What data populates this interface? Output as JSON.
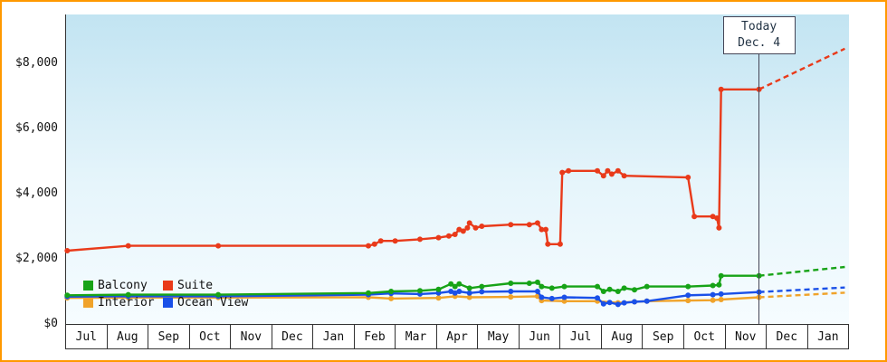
{
  "window": {
    "border_color": "#ff9900",
    "background": "#ffffff"
  },
  "today_marker": {
    "line1": "Today",
    "line2": "Dec. 4",
    "month_index": 16.32
  },
  "legend": {
    "items": [
      {
        "label": "Balcony",
        "color": "#17a317"
      },
      {
        "label": "Suite",
        "color": "#e93a1a"
      },
      {
        "label": "Interior",
        "color": "#f0a32a"
      },
      {
        "label": "Ocean View",
        "color": "#1a50e8"
      }
    ]
  },
  "chart_data": {
    "type": "line",
    "title": "",
    "grid": false,
    "legend_position": "bottom-left",
    "x_unit": "month-index, 0 = center of first Jul cell, fractional = day within month",
    "x_tick_labels": [
      "Jul",
      "Aug",
      "Sep",
      "Oct",
      "Nov",
      "Dec",
      "Jan",
      "Feb",
      "Mar",
      "Apr",
      "May",
      "Jun",
      "Jul",
      "Aug",
      "Sep",
      "Oct",
      "Nov",
      "Dec",
      "Jan"
    ],
    "y_ticks": [
      {
        "label": "$0",
        "value": 0
      },
      {
        "label": "$2,000",
        "value": 2000
      },
      {
        "label": "$4,000",
        "value": 4000
      },
      {
        "label": "$6,000",
        "value": 6000
      },
      {
        "label": "$8,000",
        "value": 8000
      }
    ],
    "ylim": [
      0,
      9500
    ],
    "plot_background": {
      "top": "#c2e4f2",
      "bottom": "#f6fcff"
    },
    "today": {
      "label": [
        "Today",
        "Dec. 4"
      ],
      "x": 16.32
    },
    "series": [
      {
        "name": "Interior",
        "color": "#f0a32a",
        "points": [
          [
            -0.45,
            800
          ],
          [
            1.03,
            810
          ],
          [
            3.21,
            810
          ],
          [
            6.85,
            820
          ],
          [
            7.4,
            780
          ],
          [
            8.55,
            800
          ],
          [
            8.95,
            850
          ],
          [
            9.3,
            820
          ],
          [
            10.3,
            830
          ],
          [
            10.95,
            850
          ],
          [
            11.05,
            720
          ],
          [
            11.6,
            700
          ],
          [
            12.4,
            700
          ],
          [
            12.9,
            650
          ],
          [
            13.3,
            680
          ],
          [
            13.6,
            700
          ],
          [
            14.6,
            720
          ],
          [
            15.2,
            730
          ],
          [
            15.4,
            750
          ],
          [
            16.32,
            820
          ]
        ],
        "projection": [
          [
            16.32,
            820
          ],
          [
            18.4,
            960
          ]
        ]
      },
      {
        "name": "Ocean View",
        "color": "#1a50e8",
        "points": [
          [
            -0.45,
            840
          ],
          [
            1.03,
            850
          ],
          [
            3.21,
            850
          ],
          [
            6.85,
            900
          ],
          [
            7.4,
            940
          ],
          [
            8.1,
            920
          ],
          [
            8.55,
            950
          ],
          [
            8.85,
            1000
          ],
          [
            8.95,
            950
          ],
          [
            9.05,
            1000
          ],
          [
            9.3,
            950
          ],
          [
            9.6,
            990
          ],
          [
            10.3,
            1000
          ],
          [
            10.95,
            1000
          ],
          [
            11.05,
            820
          ],
          [
            11.3,
            780
          ],
          [
            11.6,
            820
          ],
          [
            12.4,
            800
          ],
          [
            12.55,
            620
          ],
          [
            12.7,
            660
          ],
          [
            12.9,
            600
          ],
          [
            13.05,
            650
          ],
          [
            13.3,
            680
          ],
          [
            13.6,
            700
          ],
          [
            14.6,
            880
          ],
          [
            15.2,
            900
          ],
          [
            15.4,
            920
          ],
          [
            16.32,
            980
          ]
        ],
        "projection": [
          [
            16.32,
            980
          ],
          [
            18.4,
            1120
          ]
        ]
      },
      {
        "name": "Balcony",
        "color": "#17a317",
        "points": [
          [
            -0.45,
            880
          ],
          [
            1.03,
            900
          ],
          [
            3.21,
            900
          ],
          [
            6.85,
            950
          ],
          [
            7.4,
            1000
          ],
          [
            8.1,
            1020
          ],
          [
            8.55,
            1060
          ],
          [
            8.85,
            1230
          ],
          [
            8.95,
            1150
          ],
          [
            9.05,
            1230
          ],
          [
            9.3,
            1100
          ],
          [
            9.6,
            1150
          ],
          [
            10.3,
            1250
          ],
          [
            10.75,
            1250
          ],
          [
            10.95,
            1280
          ],
          [
            11.05,
            1150
          ],
          [
            11.3,
            1100
          ],
          [
            11.6,
            1150
          ],
          [
            12.4,
            1150
          ],
          [
            12.55,
            1000
          ],
          [
            12.7,
            1060
          ],
          [
            12.9,
            1000
          ],
          [
            13.05,
            1100
          ],
          [
            13.3,
            1050
          ],
          [
            13.6,
            1150
          ],
          [
            14.6,
            1150
          ],
          [
            15.2,
            1180
          ],
          [
            15.35,
            1200
          ],
          [
            15.4,
            1480
          ],
          [
            16.32,
            1480
          ]
        ],
        "projection": [
          [
            16.32,
            1480
          ],
          [
            18.4,
            1750
          ]
        ]
      },
      {
        "name": "Suite",
        "color": "#e93a1a",
        "points": [
          [
            -0.45,
            2250
          ],
          [
            1.03,
            2400
          ],
          [
            3.21,
            2400
          ],
          [
            6.85,
            2400
          ],
          [
            7.0,
            2450
          ],
          [
            7.15,
            2550
          ],
          [
            7.5,
            2550
          ],
          [
            8.1,
            2600
          ],
          [
            8.55,
            2650
          ],
          [
            8.8,
            2700
          ],
          [
            8.95,
            2750
          ],
          [
            9.05,
            2900
          ],
          [
            9.15,
            2850
          ],
          [
            9.25,
            2950
          ],
          [
            9.3,
            3100
          ],
          [
            9.45,
            2950
          ],
          [
            9.6,
            3000
          ],
          [
            10.3,
            3050
          ],
          [
            10.75,
            3050
          ],
          [
            10.95,
            3100
          ],
          [
            11.05,
            2900
          ],
          [
            11.15,
            2900
          ],
          [
            11.2,
            2450
          ],
          [
            11.5,
            2450
          ],
          [
            11.55,
            4650
          ],
          [
            11.7,
            4700
          ],
          [
            12.4,
            4700
          ],
          [
            12.55,
            4550
          ],
          [
            12.65,
            4700
          ],
          [
            12.75,
            4600
          ],
          [
            12.9,
            4700
          ],
          [
            13.05,
            4550
          ],
          [
            14.6,
            4500
          ],
          [
            14.75,
            3300
          ],
          [
            15.2,
            3300
          ],
          [
            15.3,
            3250
          ],
          [
            15.35,
            2950
          ],
          [
            15.4,
            7200
          ],
          [
            16.32,
            7200
          ]
        ],
        "projection": [
          [
            16.32,
            7200
          ],
          [
            18.4,
            8450
          ]
        ]
      }
    ]
  }
}
